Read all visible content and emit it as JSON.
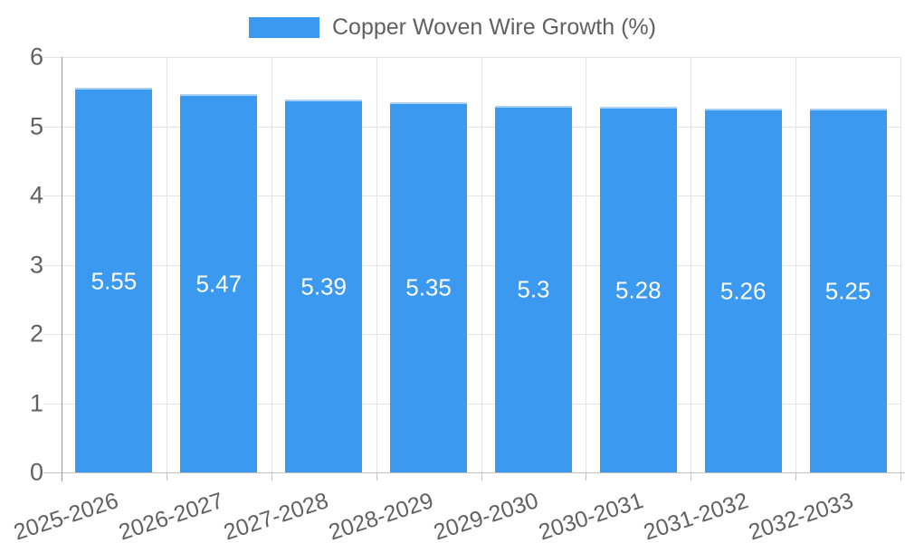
{
  "chart_data": {
    "type": "bar",
    "title": "Copper Woven Wire Growth (%)",
    "categories": [
      "2025-2026",
      "2026-2027",
      "2027-2028",
      "2028-2029",
      "2029-2030",
      "2030-2031",
      "2031-2032",
      "2032-2033"
    ],
    "values": [
      5.55,
      5.47,
      5.39,
      5.35,
      5.3,
      5.28,
      5.26,
      5.25
    ],
    "bar_labels": [
      "5.55",
      "5.47",
      "5.39",
      "5.35",
      "5.3",
      "5.28",
      "5.26",
      "5.25"
    ],
    "xlabel": "",
    "ylabel": "",
    "ylim": [
      0,
      6
    ],
    "yticks": [
      "0",
      "1",
      "2",
      "3",
      "4",
      "5",
      "6"
    ],
    "grid": true,
    "legend_position": "top-center",
    "x_tick_rotation_deg": -18,
    "colors": {
      "bar": "#3B9AEF",
      "bar_top_edge": "#A8CFF4",
      "bar_label": "#FFFFFF",
      "axis_text": "#616161",
      "gridline": "#E4E4E4",
      "axis_line": "#9A9A9A",
      "baseline": "#C2C2C2"
    }
  }
}
